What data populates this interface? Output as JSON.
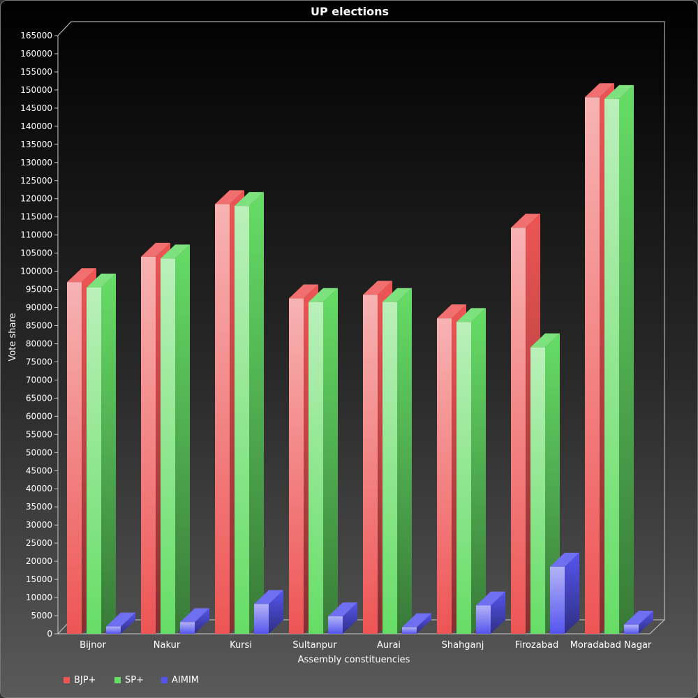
{
  "chart_data": {
    "type": "bar",
    "title": "UP elections",
    "xlabel": "Assembly constituencies",
    "ylabel": "Vote share",
    "ylim": [
      0,
      165000
    ],
    "ytick_step": 5000,
    "categories": [
      "Bijnor",
      "Nakur",
      "Kursi",
      "Sultanpur",
      "Aurai",
      "Shahganj",
      "Firozabad",
      "Moradabad Nagar"
    ],
    "series": [
      {
        "name": "BJP+",
        "color": "#ee5555",
        "values": [
          97000,
          104000,
          118500,
          92500,
          93500,
          87000,
          112000,
          148000
        ]
      },
      {
        "name": "SP+",
        "color": "#66dd66",
        "values": [
          95500,
          103500,
          118000,
          91500,
          91500,
          86000,
          79000,
          147500
        ]
      },
      {
        "name": "AIMIM",
        "color": "#5555ee",
        "values": [
          2000,
          3200,
          8200,
          4800,
          1800,
          7800,
          18500,
          2500
        ]
      }
    ],
    "legend_position": "bottom-left",
    "grid": false
  }
}
